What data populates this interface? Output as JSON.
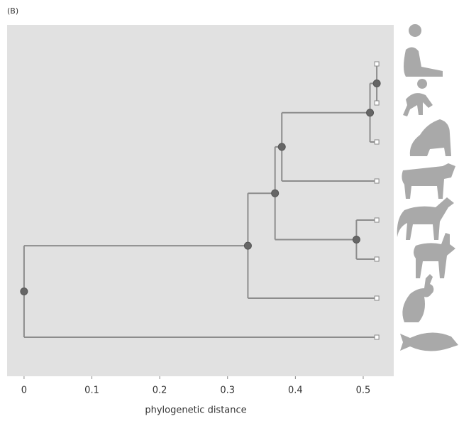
{
  "chart_data": {
    "type": "dendrogram",
    "panel_label": "(B)",
    "x_label": "phylogenetic distance",
    "xlim": [
      -0.025,
      0.545
    ],
    "xticks": [
      0,
      0.1,
      0.2,
      0.3,
      0.4,
      0.5
    ],
    "tree": {
      "x": 0,
      "children": [
        {
          "x": 0.33,
          "children": [
            {
              "x": 0.37,
              "children": [
                {
                  "x": 0.38,
                  "children": [
                    {
                      "x": 0.51,
                      "children": [
                        {
                          "x": 0.52,
                          "children": [
                            {
                              "x": 0.52
                            },
                            {
                              "x": 0.52
                            }
                          ]
                        },
                        {
                          "x": 0.52
                        }
                      ]
                    },
                    {
                      "x": 0.52
                    }
                  ]
                },
                {
                  "x": 0.49,
                  "children": [
                    {
                      "x": 0.52
                    },
                    {
                      "x": 0.52
                    }
                  ]
                }
              ]
            },
            {
              "x": 0.52
            }
          ]
        },
        {
          "x": 0.52
        }
      ]
    }
  }
}
